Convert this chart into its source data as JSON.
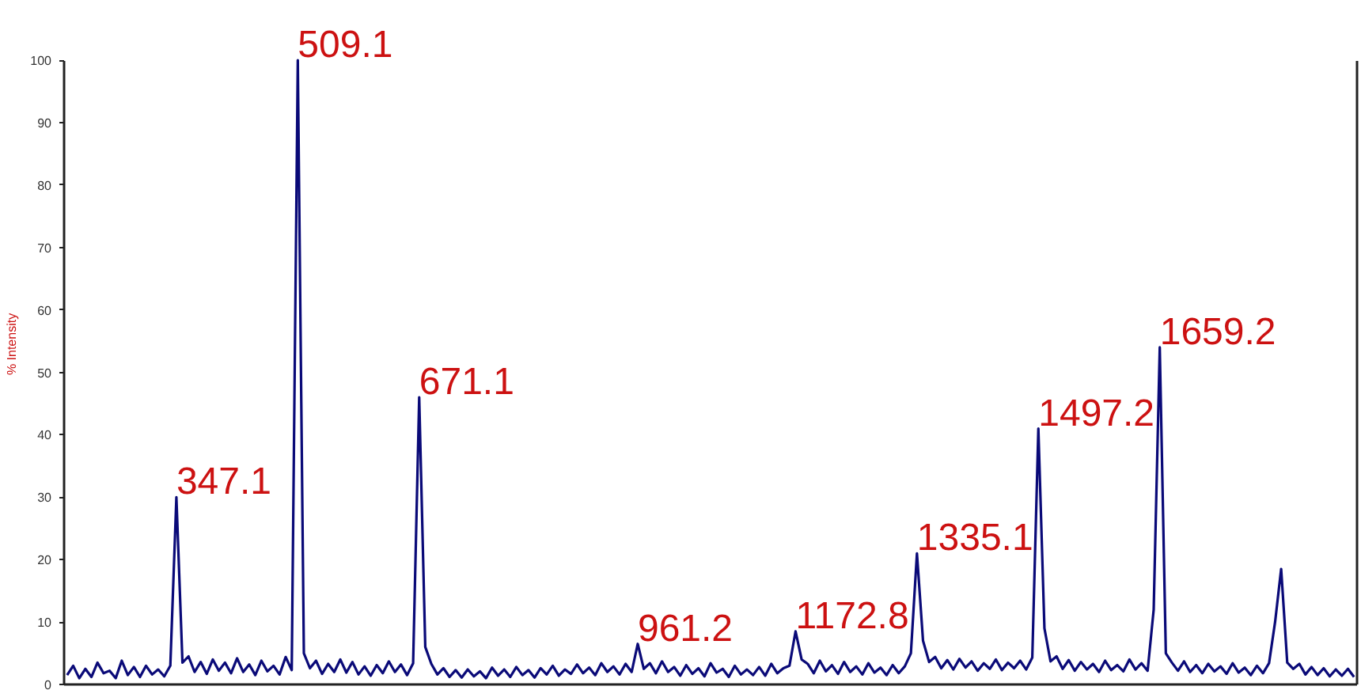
{
  "chart_data": {
    "type": "line",
    "ylabel": "% Intensity",
    "color": "#0a0a78",
    "line_style": "solid",
    "ylim": [
      0,
      100
    ],
    "yticks": [
      0,
      10,
      20,
      30,
      40,
      50,
      60,
      70,
      80,
      90,
      100
    ],
    "grid": false,
    "categories": [
      null,
      null,
      null,
      null,
      null,
      null,
      null,
      null,
      null,
      null,
      null,
      null,
      null,
      null,
      null,
      null,
      null,
      null,
      null,
      null,
      null,
      null,
      null,
      null,
      null,
      null,
      null,
      null,
      null,
      null,
      null,
      null,
      null,
      null,
      null,
      null,
      null,
      null,
      null,
      null,
      null,
      null,
      null,
      null,
      null,
      null,
      null,
      null,
      null,
      null,
      null,
      null,
      null,
      null,
      null,
      null,
      null,
      null,
      null,
      null,
      null,
      null,
      null,
      null,
      null,
      null,
      null,
      null,
      null,
      null,
      null,
      null,
      null,
      null,
      null,
      null,
      null,
      null,
      null,
      null,
      null,
      null,
      null,
      null,
      null,
      null,
      null,
      null,
      null,
      null,
      null,
      null,
      null,
      null,
      null,
      null,
      null,
      null,
      null,
      null,
      null,
      null,
      null,
      null,
      null,
      null,
      null,
      null,
      null,
      null,
      null,
      null,
      null,
      null,
      null,
      null,
      null,
      null,
      null,
      null,
      null,
      null,
      null,
      null,
      null,
      null,
      null,
      null,
      null,
      null,
      null,
      null,
      null,
      null,
      null,
      null,
      null,
      null,
      null,
      null,
      null,
      null,
      null,
      null,
      null,
      null,
      null,
      null,
      null,
      null,
      null,
      null,
      null,
      null,
      null,
      null,
      null,
      null,
      null,
      null,
      null,
      null,
      null,
      null,
      null,
      null,
      null,
      null,
      null,
      null,
      null,
      null,
      null,
      null,
      null,
      null,
      null,
      null,
      null,
      null,
      null,
      null,
      null,
      null,
      null,
      null,
      null,
      null,
      null,
      null,
      null,
      null,
      null,
      null,
      null,
      null,
      null,
      null,
      null,
      null,
      null,
      null,
      null,
      null,
      null,
      null,
      null,
      null,
      null,
      null,
      null,
      null,
      null
    ],
    "values": [
      1.5,
      3,
      1,
      2.5,
      1.2,
      3.5,
      1.8,
      2.2,
      1,
      3.8,
      1.5,
      2.8,
      1.2,
      3,
      1.6,
      2.4,
      1.3,
      3,
      30,
      3.5,
      4.5,
      2,
      3.6,
      1.7,
      4,
      2.2,
      3.5,
      1.8,
      4.2,
      2,
      3.2,
      1.5,
      3.8,
      2.1,
      3,
      1.6,
      4.4,
      2.3,
      100,
      5,
      2.6,
      3.8,
      1.7,
      3.3,
      2,
      4,
      1.9,
      3.6,
      1.6,
      2.9,
      1.4,
      3.1,
      1.8,
      3.7,
      2,
      3.2,
      1.5,
      3.4,
      46,
      6,
      3.3,
      1.6,
      2.6,
      1.2,
      2.3,
      1.1,
      2.4,
      1.3,
      2.1,
      1,
      2.7,
      1.4,
      2.4,
      1.2,
      2.8,
      1.5,
      2.3,
      1.1,
      2.6,
      1.6,
      3,
      1.4,
      2.4,
      1.7,
      3.2,
      1.8,
      2.7,
      1.5,
      3.4,
      2,
      2.9,
      1.6,
      3.3,
      2,
      6.5,
      2.5,
      3.4,
      1.8,
      3.7,
      2,
      2.8,
      1.4,
      3.1,
      1.7,
      2.6,
      1.3,
      3.4,
      1.9,
      2.5,
      1.2,
      3,
      1.6,
      2.4,
      1.5,
      2.8,
      1.4,
      3.3,
      1.8,
      2.6,
      3,
      8.5,
      4,
      3.3,
      1.8,
      3.8,
      2.1,
      3.1,
      1.7,
      3.6,
      2,
      2.9,
      1.6,
      3.4,
      1.9,
      2.7,
      1.5,
      3.1,
      1.8,
      2.9,
      5,
      21,
      7,
      3.6,
      4.4,
      2.6,
      3.9,
      2.4,
      4.1,
      2.7,
      3.7,
      2.2,
      3.4,
      2.5,
      4,
      2.3,
      3.5,
      2.6,
      3.8,
      2.4,
      4.3,
      41,
      9,
      3.7,
      4.5,
      2.5,
      3.9,
      2.2,
      3.6,
      2.4,
      3.3,
      2,
      3.8,
      2.3,
      3.1,
      2.1,
      4,
      2.4,
      3.4,
      2.2,
      12,
      54,
      5,
      3.5,
      2.2,
      3.7,
      2,
      3.1,
      1.8,
      3.3,
      2.1,
      2.9,
      1.7,
      3.4,
      1.9,
      2.7,
      1.5,
      3,
      1.8,
      3.4,
      10,
      18.5,
      3.5,
      2.5,
      3.3,
      1.6,
      2.8,
      1.5,
      2.6,
      1.3,
      2.4,
      1.4,
      2.5,
      1.2
    ],
    "annotations": [
      "347.1",
      "509.1",
      "671.1",
      "961.2",
      "1172.8",
      "1335.1",
      "1497.2",
      "1659.2"
    ]
  }
}
